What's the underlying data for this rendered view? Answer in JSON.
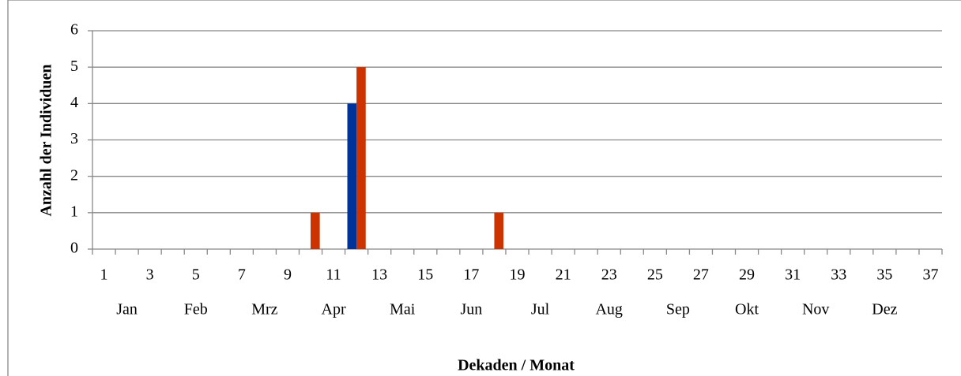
{
  "chart_data": {
    "type": "bar",
    "x_label": "Dekaden / Monat",
    "y_label": "Anzahl der Individuen",
    "categories": [
      "1",
      null,
      "3",
      null,
      "5",
      null,
      "7",
      null,
      "9",
      null,
      "11",
      null,
      "13",
      null,
      "15",
      null,
      "17",
      null,
      "19",
      null,
      "21",
      null,
      "23",
      null,
      "25",
      null,
      "27",
      null,
      "29",
      null,
      "31",
      null,
      "33",
      null,
      "35",
      null,
      "37"
    ],
    "months": [
      "Jan",
      "Feb",
      "Mrz",
      "Apr",
      "Mai",
      "Jun",
      "Jul",
      "Aug",
      "Sep",
      "Okt",
      "Nov",
      "Dez"
    ],
    "series": [
      {
        "color": "#003399",
        "values": [
          0,
          0,
          0,
          0,
          0,
          0,
          0,
          0,
          0,
          0,
          0,
          4,
          0,
          0,
          0,
          0,
          0,
          0,
          0,
          0,
          0,
          0,
          0,
          0,
          0,
          0,
          0,
          0,
          0,
          0,
          0,
          0,
          0,
          0,
          0,
          0,
          0
        ]
      },
      {
        "color": "#cc3300",
        "values": [
          0,
          0,
          0,
          0,
          0,
          0,
          0,
          0,
          0,
          1,
          0,
          5,
          0,
          0,
          0,
          0,
          0,
          1,
          0,
          0,
          0,
          0,
          0,
          0,
          0,
          0,
          0,
          0,
          0,
          0,
          0,
          0,
          0,
          0,
          0,
          0,
          0
        ]
      }
    ],
    "ylim": [
      0,
      6
    ],
    "yticks": [
      0,
      1,
      2,
      3,
      4,
      5,
      6
    ],
    "grid": true
  }
}
